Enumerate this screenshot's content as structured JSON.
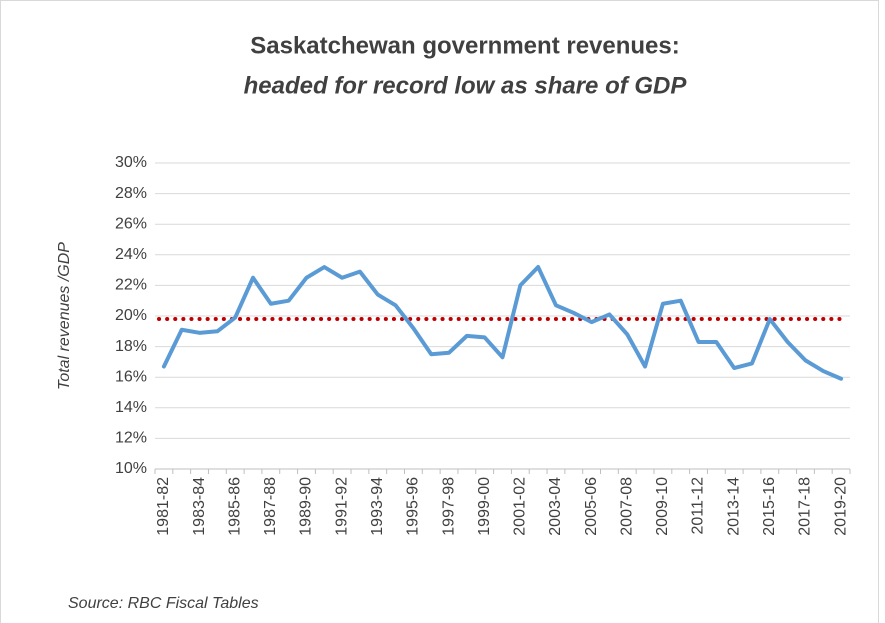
{
  "chart_data": {
    "type": "line",
    "title": "Saskatchewan government revenues:",
    "subtitle": "headed for record low as share of GDP",
    "y_label": "Total revenues /GDP",
    "source": "Source: RBC Fiscal Tables",
    "categories": [
      "1981-82",
      null,
      "1983-84",
      null,
      "1985-86",
      null,
      "1987-88",
      null,
      "1989-90",
      null,
      "1991-92",
      null,
      "1993-94",
      null,
      "1995-96",
      null,
      "1997-98",
      null,
      "1999-00",
      null,
      "2001-02",
      null,
      "2003-04",
      null,
      "2005-06",
      null,
      "2007-08",
      null,
      "2009-10",
      null,
      "2011-12",
      null,
      "2013-14",
      null,
      "2015-16",
      null,
      "2017-18",
      null,
      "2019-20"
    ],
    "series": [
      {
        "color": "#5b9bd5",
        "values": [
          16.7,
          19.1,
          18.9,
          19.0,
          19.9,
          22.5,
          20.8,
          21.0,
          22.5,
          23.2,
          22.5,
          22.9,
          21.4,
          20.7,
          19.2,
          17.5,
          17.6,
          18.7,
          18.6,
          17.3,
          22.0,
          23.2,
          20.7,
          20.2,
          19.6,
          20.1,
          18.8,
          16.7,
          20.8,
          21.0,
          18.3,
          18.3,
          16.6,
          16.9,
          19.8,
          18.3,
          17.1,
          16.4,
          15.9
        ]
      }
    ],
    "reference_line": {
      "value": 19.8,
      "color": "#c00000"
    },
    "ylim": [
      10,
      30
    ],
    "yticks": [
      {
        "value": 10,
        "label": "10%"
      },
      {
        "value": 12,
        "label": "12%"
      },
      {
        "value": 14,
        "label": "14%"
      },
      {
        "value": 16,
        "label": "16%"
      },
      {
        "value": 18,
        "label": "18%"
      },
      {
        "value": 20,
        "label": "20%"
      },
      {
        "value": 22,
        "label": "22%"
      },
      {
        "value": 24,
        "label": "24%"
      },
      {
        "value": 26,
        "label": "26%"
      },
      {
        "value": 28,
        "label": "28%"
      },
      {
        "value": 30,
        "label": "30%"
      }
    ],
    "grid": true
  }
}
